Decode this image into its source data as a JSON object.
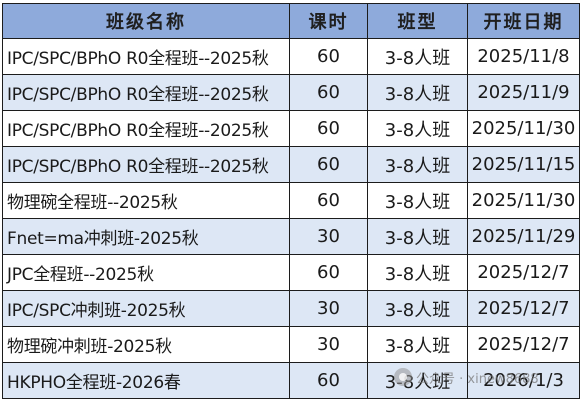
{
  "table": {
    "headers": [
      "班级名称",
      "课时",
      "班型",
      "开班日期"
    ],
    "rows": [
      {
        "name": "IPC/SPC/BPhO R0全程班--2025秋",
        "hours": "60",
        "type": "3-8人班",
        "date": "2025/11/8"
      },
      {
        "name": "IPC/SPC/BPhO R0全程班--2025秋",
        "hours": "60",
        "type": "3-8人班",
        "date": "2025/11/9"
      },
      {
        "name": "IPC/SPC/BPhO R0全程班--2025秋",
        "hours": "60",
        "type": "3-8人班",
        "date": "2025/11/30"
      },
      {
        "name": "IPC/SPC/BPhO R0全程班--2025秋",
        "hours": "60",
        "type": "3-8人班",
        "date": "2025/11/15"
      },
      {
        "name": "物理碗全程班--2025秋",
        "hours": "60",
        "type": "3-8人班",
        "date": "2025/11/30"
      },
      {
        "name": "Fnet=ma冲刺班-2025秋",
        "hours": "30",
        "type": "3-8人班",
        "date": "2025/11/29"
      },
      {
        "name": "JPC全程班--2025秋",
        "hours": "60",
        "type": "3-8人班",
        "date": "2025/12/7"
      },
      {
        "name": "IPC/SPC冲刺班-2025秋",
        "hours": "30",
        "type": "3-8人班",
        "date": "2025/12/7"
      },
      {
        "name": "物理碗冲刺班-2025秋",
        "hours": "30",
        "type": "3-8人班",
        "date": "2025/12/7"
      },
      {
        "name": "HKPHO全程班-2026春",
        "hours": "60",
        "type": "3-8人班",
        "date": "2026/1/3"
      }
    ]
  },
  "watermark": {
    "text": "公众号 · xinew8688",
    "icon": "wechat-official-account-icon"
  },
  "colors": {
    "header_bg": "#8eaadb",
    "alt_row_bg": "#dde7f5",
    "border": "#1c1c1c"
  }
}
